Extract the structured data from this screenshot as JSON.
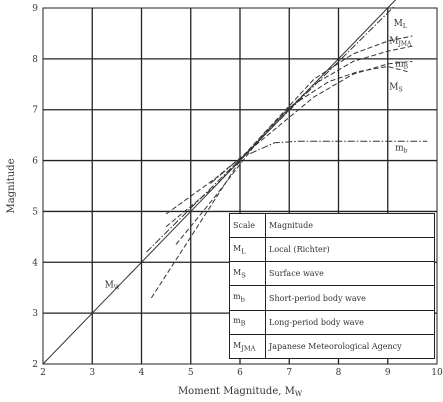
{
  "chart_data": {
    "type": "line",
    "xlabel": "Moment Magnitude, M",
    "xlabel_sub": "W",
    "ylabel": "Magnitude",
    "xlim": [
      2,
      10
    ],
    "ylim": [
      2,
      9
    ],
    "xticks": [
      "2",
      "3",
      "4",
      "5",
      "6",
      "7",
      "8",
      "9",
      "10"
    ],
    "yticks": [
      "2",
      "3",
      "4",
      "5",
      "6",
      "7",
      "8",
      "9"
    ],
    "grid": true,
    "series": [
      {
        "name": "M",
        "sub": "W",
        "style": "solid",
        "label_x": 3.25,
        "label_y": 3.5,
        "x": [
          2,
          9.3
        ],
        "y": [
          2,
          9.3
        ]
      },
      {
        "name": "M",
        "sub": "L",
        "style": "dash",
        "label_x": 9.12,
        "label_y": 8.65,
        "x": [
          4.7,
          5.5,
          6.5,
          7.5,
          8.3,
          9.0,
          9.5
        ],
        "y": [
          4.35,
          5.3,
          6.55,
          7.6,
          8.1,
          8.35,
          8.45
        ]
      },
      {
        "name": "M",
        "sub": "JMA",
        "style": "dash",
        "label_x": 9.03,
        "label_y": 8.3,
        "x": [
          4.5,
          5.5,
          6.5,
          7.5,
          8.3,
          9.0,
          9.5
        ],
        "y": [
          4.7,
          5.5,
          6.55,
          7.5,
          7.95,
          8.15,
          8.25
        ]
      },
      {
        "name": "m",
        "sub": "B",
        "style": "dash",
        "label_x": 9.15,
        "label_y": 7.85,
        "x": [
          4.5,
          5.5,
          6.5,
          7.5,
          8.3,
          9.0,
          9.5
        ],
        "y": [
          4.95,
          5.65,
          6.45,
          7.25,
          7.7,
          7.9,
          7.95
        ]
      },
      {
        "name": "M",
        "sub": "S",
        "style": "dash",
        "label_x": 9.03,
        "label_y": 7.4,
        "x": [
          4.2,
          5.0,
          6.0,
          7.0,
          7.8,
          8.4,
          9.0,
          9.4
        ],
        "y": [
          3.3,
          4.5,
          6.0,
          7.05,
          7.55,
          7.75,
          7.85,
          7.75
        ]
      },
      {
        "name": "m",
        "sub": "b",
        "style": "dashdot",
        "label_x": 9.15,
        "label_y": 6.2,
        "x": [
          5.4,
          6.0,
          6.7,
          7.2,
          9.8
        ],
        "y": [
          5.55,
          6.05,
          6.35,
          6.38,
          6.38
        ]
      },
      {
        "name": "",
        "sub": "",
        "style": "dashdot",
        "label_x": null,
        "label_y": null,
        "x": [
          4.1,
          9.15
        ],
        "y": [
          4.2,
          9.05
        ]
      }
    ],
    "legend_table": {
      "header": [
        "Scale",
        "Magnitude"
      ],
      "rows": [
        {
          "symbol": "M",
          "sub": "L",
          "desc": "Local (Richter)"
        },
        {
          "symbol": "M",
          "sub": "S",
          "desc": "Surface wave"
        },
        {
          "symbol": "m",
          "sub": "b",
          "desc": "Short-period body wave"
        },
        {
          "symbol": "m",
          "sub": "B",
          "desc": "Long-period body wave"
        },
        {
          "symbol": "M",
          "sub": "JMA",
          "desc": "Japanese Meteorological Agency"
        }
      ]
    }
  }
}
